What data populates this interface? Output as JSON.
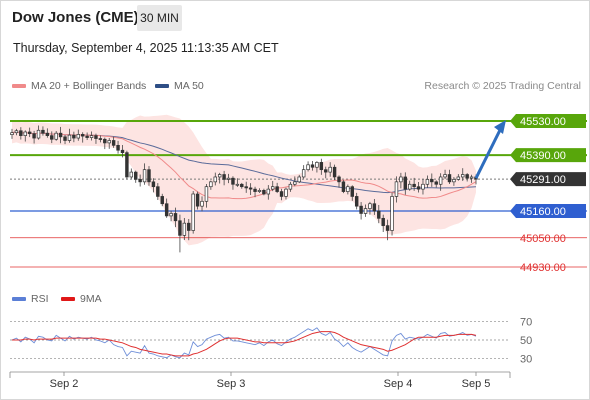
{
  "header": {
    "title": "Dow Jones (CME)",
    "timeframe": "30 MIN",
    "datetime": "Thursday, September 4, 2025 11:13:35 AM CET",
    "credit": "Research © 2025 Trading Central"
  },
  "legend": {
    "ma20_label": "MA 20 + Bollinger Bands",
    "ma50_label": "MA 50",
    "rsi_label": "RSI",
    "rsi_ma_label": "9MA"
  },
  "colors": {
    "green": "#58a60b",
    "blue": "#2f5fd0",
    "red": "#e03030",
    "current": "#333333",
    "ma20": "#f08a8a",
    "ma50": "#5a6b9a",
    "band_fill": "#fde4e2",
    "rsi": "#6f8fd8",
    "rsi_ma": "#e03030"
  },
  "chart_data": [
    {
      "type": "candlestick",
      "title": "Dow Jones (CME)",
      "timeframe": "30 MIN",
      "x_ticks": [
        "Sep 2",
        "Sep 3",
        "Sep 4",
        "Sep 5"
      ],
      "ylim": [
        44860,
        45600
      ],
      "series": [
        {
          "name": "MA 20 + Bollinger Bands",
          "kind": "ma_band"
        },
        {
          "name": "MA 50",
          "kind": "ma"
        }
      ],
      "price_levels": [
        {
          "label": "45530.00",
          "value": 45530,
          "kind": "resistance",
          "style": "green_thick"
        },
        {
          "label": "45390.00",
          "value": 45390,
          "kind": "resistance",
          "style": "green_thick"
        },
        {
          "label": "45291.00",
          "value": 45291,
          "kind": "current",
          "style": "dotted_dark"
        },
        {
          "label": "45160.00",
          "value": 45160,
          "kind": "pivot",
          "style": "blue"
        },
        {
          "label": "45050.00",
          "value": 45050,
          "kind": "support",
          "style": "red_thin"
        },
        {
          "label": "44930.00",
          "value": 44930,
          "kind": "support",
          "style": "red_thin"
        }
      ],
      "closes": [
        45482,
        45490,
        45470,
        45485,
        45478,
        45460,
        45492,
        45480,
        45470,
        45455,
        45480,
        45465,
        45450,
        45472,
        45460,
        45475,
        45468,
        45462,
        45470,
        45458,
        45455,
        45440,
        45450,
        45430,
        45410,
        45400,
        45300,
        45320,
        45290,
        45280,
        45330,
        45280,
        45260,
        45220,
        45190,
        45140,
        45150,
        45120,
        45060,
        45110,
        45080,
        45230,
        45180,
        45200,
        45260,
        45280,
        45300,
        45310,
        45290,
        45295,
        45270,
        45270,
        45260,
        45255,
        45250,
        45240,
        45245,
        45230,
        45250,
        45260,
        45240,
        45220,
        45250,
        45270,
        45280,
        45300,
        45330,
        45350,
        45340,
        45360,
        45330,
        45320,
        45340,
        45300,
        45280,
        45240,
        45260,
        45220,
        45180,
        45150,
        45170,
        45190,
        45160,
        45130,
        45100,
        45080,
        45220,
        45280,
        45300,
        45250,
        45270,
        45260,
        45250,
        45270,
        45290,
        45280,
        45270,
        45300,
        45310,
        45280,
        45290,
        45300,
        45310,
        45295,
        45300,
        45291
      ],
      "rsi": {
        "ylim": [
          20,
          80
        ],
        "levels": [
          70,
          50,
          30
        ],
        "series": [
          {
            "name": "RSI",
            "values": [
              50,
              52,
              48,
              53,
              51,
              47,
              54,
              53,
              50,
              49,
              55,
              52,
              49,
              54,
              51,
              53,
              52,
              51,
              53,
              50,
              49,
              47,
              50,
              45,
              43,
              42,
              33,
              38,
              37,
              36,
              44,
              36,
              35,
              33,
              32,
              31,
              34,
              32,
              31,
              36,
              34,
              48,
              43,
              45,
              51,
              53,
              55,
              56,
              52,
              53,
              49,
              49,
              48,
              47,
              46,
              45,
              47,
              44,
              48,
              50,
              46,
              44,
              48,
              51,
              53,
              56,
              59,
              62,
              60,
              63,
              57,
              55,
              58,
              51,
              48,
              43,
              47,
              42,
              39,
              37,
              40,
              43,
              40,
              37,
              34,
              33,
              49,
              55,
              57,
              51,
              53,
              52,
              51,
              53,
              56,
              54,
              52,
              57,
              58,
              54,
              55,
              56,
              58,
              55,
              56,
              54
            ]
          },
          {
            "name": "9MA",
            "values": [
              50,
              50,
              50,
              51,
              51,
              50,
              51,
              51,
              51,
              51,
              52,
              52,
              52,
              52,
              52,
              52,
              52,
              52,
              52,
              52,
              51,
              51,
              50,
              49,
              48,
              47,
              45,
              43,
              42,
              40,
              39,
              38,
              37,
              36,
              35,
              35,
              34,
              33,
              33,
              33,
              33,
              35,
              36,
              38,
              40,
              43,
              46,
              49,
              51,
              52,
              52,
              52,
              51,
              50,
              49,
              48,
              48,
              47,
              47,
              47,
              47,
              47,
              47,
              48,
              49,
              51,
              53,
              55,
              57,
              58,
              59,
              59,
              59,
              58,
              56,
              53,
              51,
              49,
              47,
              45,
              44,
              43,
              42,
              41,
              40,
              38,
              39,
              41,
              43,
              45,
              48,
              51,
              53,
              53,
              53,
              53,
              53,
              54,
              55,
              55,
              55,
              56,
              56,
              56,
              56,
              55
            ]
          }
        ]
      }
    }
  ]
}
